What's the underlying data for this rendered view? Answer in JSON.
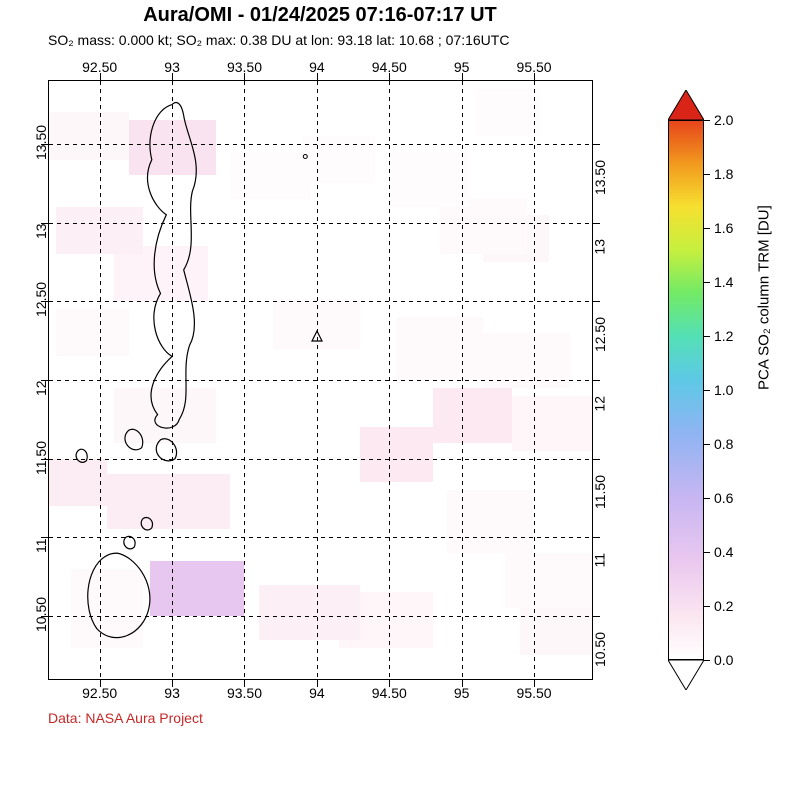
{
  "title": "Aura/OMI - 01/24/2025 07:16-07:17 UT",
  "subtitle": "SO₂ mass: 0.000 kt; SO₂ max: 0.38 DU at lon: 93.18 lat: 10.68 ; 07:16UTC",
  "credit": "Data: NASA Aura Project",
  "credit_color": "#c62828",
  "map": {
    "type": "heatmap-map",
    "x_range": [
      92.15,
      95.9
    ],
    "y_range": [
      10.1,
      13.9
    ],
    "x_ticks": [
      92.5,
      93.0,
      93.5,
      94.0,
      94.5,
      95.0,
      95.5
    ],
    "x_tick_labels": [
      "92.50",
      "93",
      "93.50",
      "94",
      "94.50",
      "95",
      "95.50"
    ],
    "y_ticks": [
      10.5,
      11.0,
      11.5,
      12.0,
      12.5,
      13.0,
      13.5
    ],
    "y_tick_labels": [
      "10.50",
      "11",
      "11.50",
      "12",
      "12.50",
      "13",
      "13.50"
    ],
    "grid_style": "dashed",
    "grid_color": "#000000",
    "background_color": "#ffffff",
    "axis_fontsize": 14,
    "title_fontsize": 20,
    "subtitle_fontsize": 14,
    "volcano_marker": {
      "lon": 94.0,
      "lat": 12.28,
      "symbol": "triangle-open",
      "color": "#000000"
    },
    "coast_color": "#000000",
    "coast_width": 1.2,
    "cells": [
      {
        "lon0": 92.15,
        "lon1": 92.7,
        "lat0": 13.4,
        "lat1": 13.7,
        "v": 0.05
      },
      {
        "lon0": 92.7,
        "lon1": 93.3,
        "lat0": 13.3,
        "lat1": 13.65,
        "v": 0.18
      },
      {
        "lon0": 92.2,
        "lon1": 92.8,
        "lat0": 12.8,
        "lat1": 13.1,
        "v": 0.1
      },
      {
        "lon0": 92.6,
        "lon1": 93.25,
        "lat0": 12.5,
        "lat1": 12.85,
        "v": 0.08
      },
      {
        "lon0": 92.2,
        "lon1": 92.7,
        "lat0": 12.15,
        "lat1": 12.45,
        "v": 0.04
      },
      {
        "lon0": 92.6,
        "lon1": 93.3,
        "lat0": 11.6,
        "lat1": 11.95,
        "v": 0.05
      },
      {
        "lon0": 92.15,
        "lon1": 92.55,
        "lat0": 11.2,
        "lat1": 11.5,
        "v": 0.12
      },
      {
        "lon0": 92.55,
        "lon1": 93.4,
        "lat0": 11.05,
        "lat1": 11.4,
        "v": 0.12
      },
      {
        "lon0": 92.85,
        "lon1": 93.5,
        "lat0": 10.5,
        "lat1": 10.85,
        "v": 0.38
      },
      {
        "lon0": 92.3,
        "lon1": 92.8,
        "lat0": 10.3,
        "lat1": 10.8,
        "v": 0.04
      },
      {
        "lon0": 93.4,
        "lon1": 93.95,
        "lat0": 13.15,
        "lat1": 13.45,
        "v": 0.02
      },
      {
        "lon0": 93.9,
        "lon1": 94.4,
        "lat0": 13.25,
        "lat1": 13.55,
        "v": 0.02
      },
      {
        "lon0": 93.7,
        "lon1": 94.3,
        "lat0": 12.2,
        "lat1": 12.5,
        "v": 0.03
      },
      {
        "lon0": 93.6,
        "lon1": 94.3,
        "lat0": 10.35,
        "lat1": 10.7,
        "v": 0.1
      },
      {
        "lon0": 94.15,
        "lon1": 94.8,
        "lat0": 10.3,
        "lat1": 10.65,
        "v": 0.06
      },
      {
        "lon0": 94.3,
        "lon1": 94.8,
        "lat0": 11.35,
        "lat1": 11.7,
        "v": 0.14
      },
      {
        "lon0": 94.5,
        "lon1": 95.05,
        "lat0": 13.1,
        "lat1": 13.45,
        "v": 0.02
      },
      {
        "lon0": 95.1,
        "lon1": 95.55,
        "lat0": 13.55,
        "lat1": 13.85,
        "v": 0.02
      },
      {
        "lon0": 94.85,
        "lon1": 95.45,
        "lat0": 12.8,
        "lat1": 13.15,
        "v": 0.03
      },
      {
        "lon0": 95.15,
        "lon1": 95.6,
        "lat0": 12.75,
        "lat1": 13.05,
        "v": 0.05
      },
      {
        "lon0": 94.55,
        "lon1": 95.15,
        "lat0": 12.0,
        "lat1": 12.4,
        "v": 0.04
      },
      {
        "lon0": 95.15,
        "lon1": 95.75,
        "lat0": 11.95,
        "lat1": 12.3,
        "v": 0.04
      },
      {
        "lon0": 94.8,
        "lon1": 95.35,
        "lat0": 11.6,
        "lat1": 11.95,
        "v": 0.14
      },
      {
        "lon0": 95.35,
        "lon1": 95.9,
        "lat0": 11.55,
        "lat1": 11.9,
        "v": 0.06
      },
      {
        "lon0": 94.9,
        "lon1": 95.5,
        "lat0": 10.9,
        "lat1": 11.3,
        "v": 0.04
      },
      {
        "lon0": 95.3,
        "lon1": 95.9,
        "lat0": 10.55,
        "lat1": 10.9,
        "v": 0.03
      },
      {
        "lon0": 95.4,
        "lon1": 95.9,
        "lat0": 10.25,
        "lat1": 10.6,
        "v": 0.05
      }
    ],
    "coastlines": [
      "M 93.00 13.75 C 92.88 13.72 92.82 13.55 92.86 13.40 C 92.78 13.25 92.88 13.10 92.96 13.05 C 92.88 12.90 92.84 12.70 92.92 12.55 C 92.82 12.40 92.90 12.20 93.00 12.15 C 92.88 12.05 92.80 11.90 92.90 11.78 C 92.82 11.70 93.02 11.65 93.05 11.75 C 93.14 11.88 93.06 12.05 93.12 12.22 C 93.20 12.35 93.12 12.55 93.08 12.70 C 93.18 12.85 93.10 13.05 93.14 13.20 C 93.22 13.38 93.10 13.55 93.08 13.68 C 93.06 13.78 93.02 13.77 93.00 13.75 Z",
      "M 92.92 11.62 C 92.84 11.55 92.94 11.45 93.02 11.50 C 93.06 11.57 92.98 11.65 92.92 11.62 Z",
      "M 92.70 11.68 C 92.63 11.62 92.72 11.52 92.79 11.57 C 92.82 11.64 92.75 11.71 92.70 11.68 Z",
      "M 92.35 11.55 C 92.31 11.51 92.37 11.45 92.41 11.49 C 92.43 11.54 92.38 11.58 92.35 11.55 Z",
      "M 92.54 10.88 C 92.40 10.80 92.38 10.55 92.48 10.42 C 92.60 10.30 92.80 10.38 92.84 10.55 C 92.88 10.72 92.74 10.88 92.62 10.90 C 92.58 10.90 92.56 10.89 92.54 10.88 Z",
      "M 92.80 11.12 C 92.76 11.08 92.82 11.02 92.86 11.06 C 92.88 11.11 92.83 11.14 92.80 11.12 Z",
      "M 92.68 11.00 C 92.64 10.96 92.70 10.90 92.74 10.94 C 92.76 10.99 92.71 11.02 92.68 11.00 Z"
    ]
  },
  "colorbar": {
    "label": "PCA SO₂ column TRM [DU]",
    "range": [
      0.0,
      2.0
    ],
    "ticks": [
      0.0,
      0.2,
      0.4,
      0.6,
      0.8,
      1.0,
      1.2,
      1.4,
      1.6,
      1.8,
      2.0
    ],
    "tick_labels": [
      "0.0",
      "0.2",
      "0.4",
      "0.6",
      "0.8",
      "1.0",
      "1.2",
      "1.4",
      "1.6",
      "1.8",
      "2.0"
    ],
    "top_color": "#d92518",
    "bottom_color": "#ffffff",
    "border_color": "#000000",
    "gradient_stops": [
      {
        "t": 0.0,
        "c": "#ffffff"
      },
      {
        "t": 0.08,
        "c": "#fbe6f0"
      },
      {
        "t": 0.18,
        "c": "#eac8ef"
      },
      {
        "t": 0.3,
        "c": "#c7b6f2"
      },
      {
        "t": 0.42,
        "c": "#8fb4f2"
      },
      {
        "t": 0.52,
        "c": "#5dc9e6"
      },
      {
        "t": 0.6,
        "c": "#54e0b5"
      },
      {
        "t": 0.68,
        "c": "#72ea66"
      },
      {
        "t": 0.76,
        "c": "#c6ef3e"
      },
      {
        "t": 0.84,
        "c": "#f6e030"
      },
      {
        "t": 0.92,
        "c": "#f29a1e"
      },
      {
        "t": 1.0,
        "c": "#e6451b"
      }
    ],
    "label_fontsize": 15,
    "tick_fontsize": 14
  }
}
